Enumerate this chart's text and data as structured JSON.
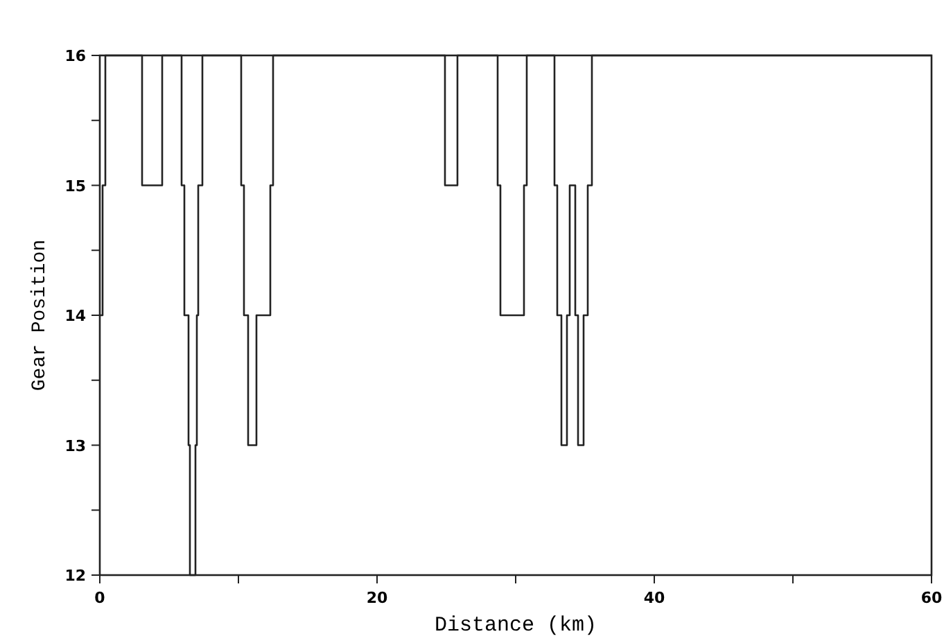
{
  "chart_data": {
    "type": "step",
    "xlabel": "Distance (km)",
    "ylabel": "Gear Position",
    "x": [
      0,
      0.2,
      0.4,
      3.05,
      4.5,
      5.9,
      6.1,
      6.4,
      6.5,
      6.9,
      7.0,
      7.1,
      7.4,
      10.2,
      10.4,
      10.7,
      11.3,
      12.3,
      12.5,
      24.9,
      25.8,
      28.7,
      28.9,
      30.6,
      30.8,
      32.8,
      33.0,
      33.3,
      33.7,
      33.9,
      34.3,
      34.5,
      34.9,
      35.2,
      35.5,
      60
    ],
    "series": [
      {
        "color": "#222222",
        "values": [
          14,
          15,
          16,
          15,
          16,
          15,
          14,
          13,
          12,
          13,
          14,
          15,
          16,
          15,
          14,
          13,
          14,
          15,
          16,
          15,
          16,
          15,
          14,
          15,
          16,
          15,
          14,
          13,
          14,
          15,
          14,
          13,
          14,
          15,
          16,
          16
        ]
      }
    ],
    "xlim": [
      0,
      60
    ],
    "xticks": [
      0,
      {
        "value": 10,
        "label": null
      },
      20,
      {
        "value": 30,
        "label": null
      },
      40,
      {
        "value": 50,
        "label": null
      },
      60
    ],
    "ylim": [
      12,
      16
    ],
    "yticks": [
      12,
      {
        "value": 12.5,
        "label": null
      },
      13,
      {
        "value": 13.5,
        "label": null
      },
      14,
      {
        "value": 14.5,
        "label": null
      },
      15,
      {
        "value": 15.5,
        "label": null
      },
      16
    ],
    "grid": false,
    "line_style": "solid"
  }
}
